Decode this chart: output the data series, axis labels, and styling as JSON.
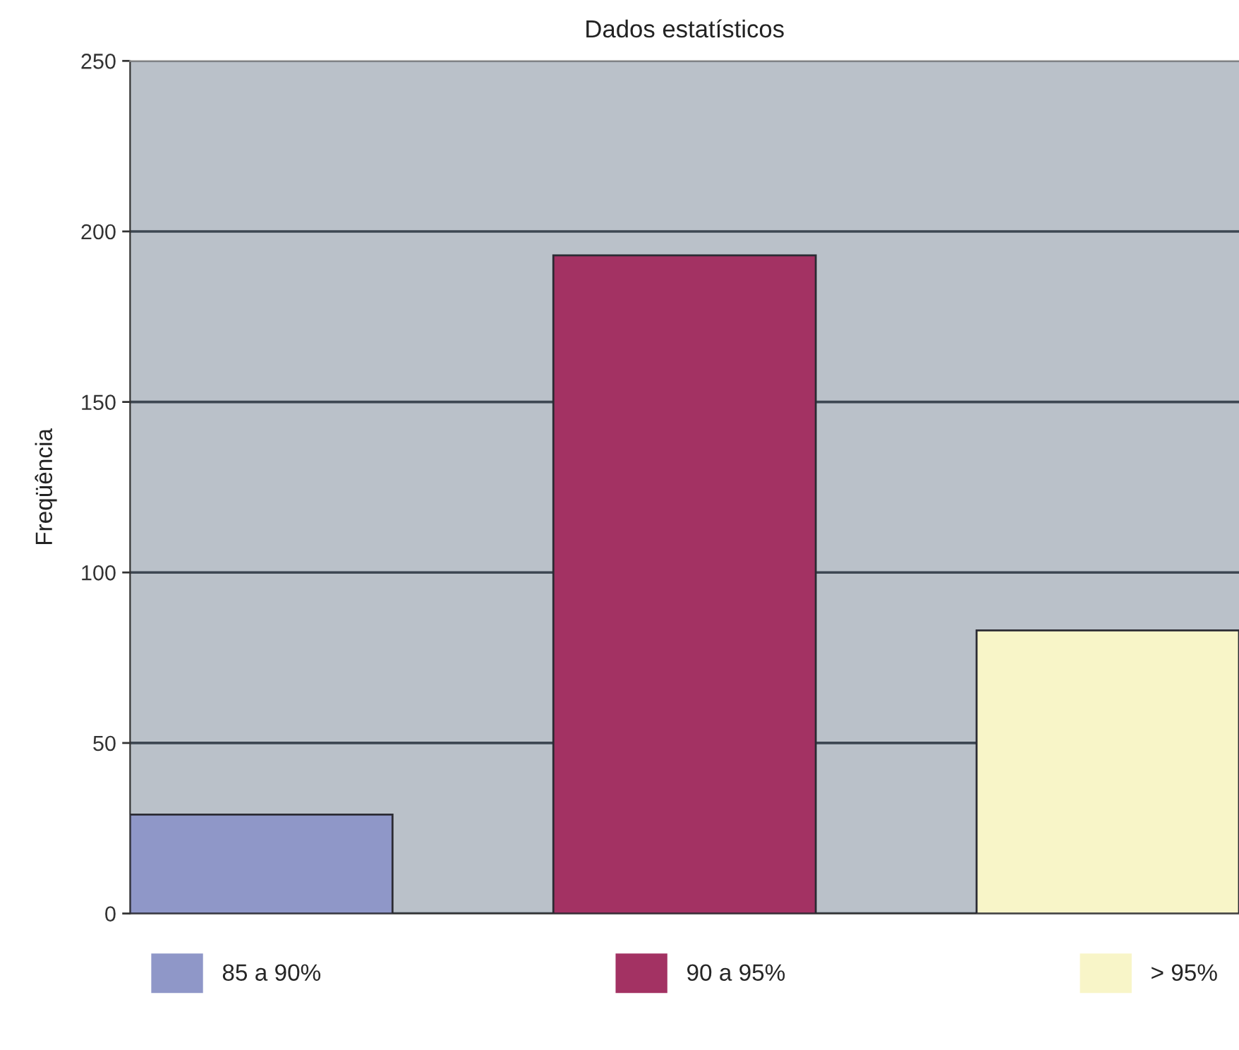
{
  "chart_data": {
    "type": "bar",
    "title": "Dados estatísticos",
    "ylabel": "Freqüência",
    "categories": [
      null,
      null,
      null
    ],
    "series": [
      {
        "name": "85 a 90%",
        "color": "#8f97c8",
        "values": [
          29,
          null,
          null
        ]
      },
      {
        "name": "90 a 95%",
        "color": "#a33263",
        "values": [
          null,
          193,
          null
        ]
      },
      {
        "name": "> 95%",
        "color": "#f8f5c8",
        "values": [
          null,
          null,
          83
        ]
      }
    ],
    "ylim": [
      0,
      250
    ],
    "yticks": [
      0,
      50,
      100,
      150,
      200,
      250
    ],
    "grid": "y",
    "legend": "bottom",
    "tick_labels": "y"
  }
}
